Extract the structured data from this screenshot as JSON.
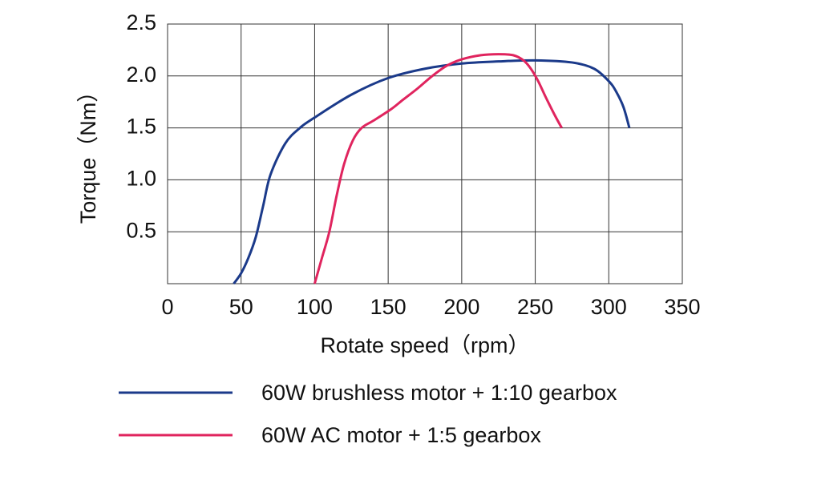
{
  "chart_data": {
    "type": "line",
    "x_label": "Rotate speed（rpm）",
    "y_label": "Torque（Nm）",
    "xlim": [
      0,
      350
    ],
    "xticks": [
      0,
      50,
      100,
      150,
      200,
      250,
      300,
      350
    ],
    "ylim": [
      0,
      2.5
    ],
    "yticks": [
      0.5,
      {
        "value": 1,
        "label": "1.0"
      },
      1.5,
      {
        "value": 2,
        "label": "2.0"
      },
      2.5
    ],
    "grid": true,
    "series": [
      {
        "name": "60W brushless motor + 1:10 gearbox",
        "color": "#1b3a8a",
        "x": [
          45,
          50,
          55,
          60,
          65,
          70,
          80,
          90,
          100,
          125,
          150,
          175,
          200,
          225,
          250,
          275,
          290,
          300,
          305,
          310,
          314
        ],
        "values": [
          0,
          0.1,
          0.25,
          0.45,
          0.75,
          1.05,
          1.35,
          1.5,
          1.6,
          1.82,
          1.98,
          2.07,
          2.12,
          2.14,
          2.15,
          2.13,
          2.07,
          1.95,
          1.85,
          1.7,
          1.5
        ]
      },
      {
        "name": "60W AC motor + 1:5 gearbox",
        "color": "#e0245e",
        "x": [
          100,
          105,
          110,
          115,
          120,
          126,
          132,
          140,
          152,
          160,
          170,
          180,
          190,
          200,
          213,
          225,
          235,
          242,
          247,
          252,
          257,
          263,
          268
        ],
        "values": [
          0,
          0.25,
          0.5,
          0.85,
          1.15,
          1.38,
          1.5,
          1.57,
          1.68,
          1.77,
          1.88,
          2.0,
          2.1,
          2.16,
          2.2,
          2.21,
          2.2,
          2.15,
          2.07,
          1.95,
          1.8,
          1.63,
          1.5
        ]
      }
    ]
  }
}
